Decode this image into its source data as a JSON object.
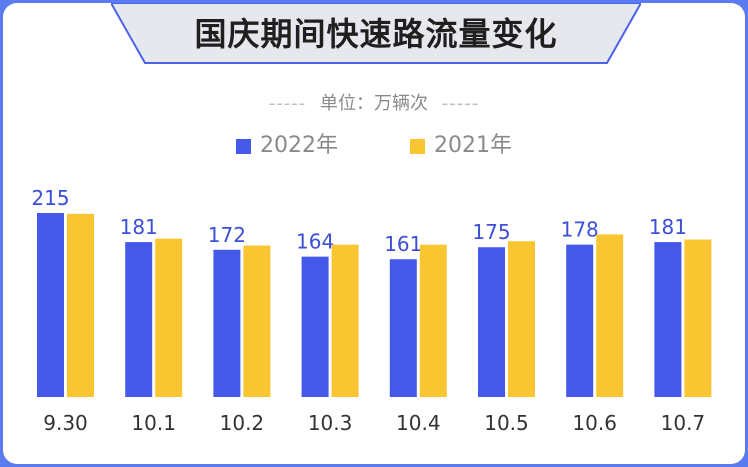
{
  "title": "国庆期间快速路流量变化",
  "unit_label": "单位：万辆次",
  "colors": {
    "series_2022": "#4459ea",
    "series_2021": "#f9c531",
    "background": "#5b7bf0"
  },
  "chart_data": {
    "type": "bar",
    "title": "国庆期间快速路流量变化",
    "ylabel": "单位：万辆次",
    "categories": [
      "9.30",
      "10.1",
      "10.2",
      "10.3",
      "10.4",
      "10.5",
      "10.6",
      "10.7"
    ],
    "series": [
      {
        "name": "2022年",
        "values": [
          215,
          181,
          172,
          164,
          161,
          175,
          178,
          181
        ],
        "labeled": true
      },
      {
        "name": "2021年",
        "values": [
          214,
          185,
          177,
          178,
          178,
          182,
          190,
          184
        ],
        "labeled": false
      }
    ],
    "ylim": [
      0,
      215
    ],
    "grid": false,
    "legend": "top-center"
  }
}
